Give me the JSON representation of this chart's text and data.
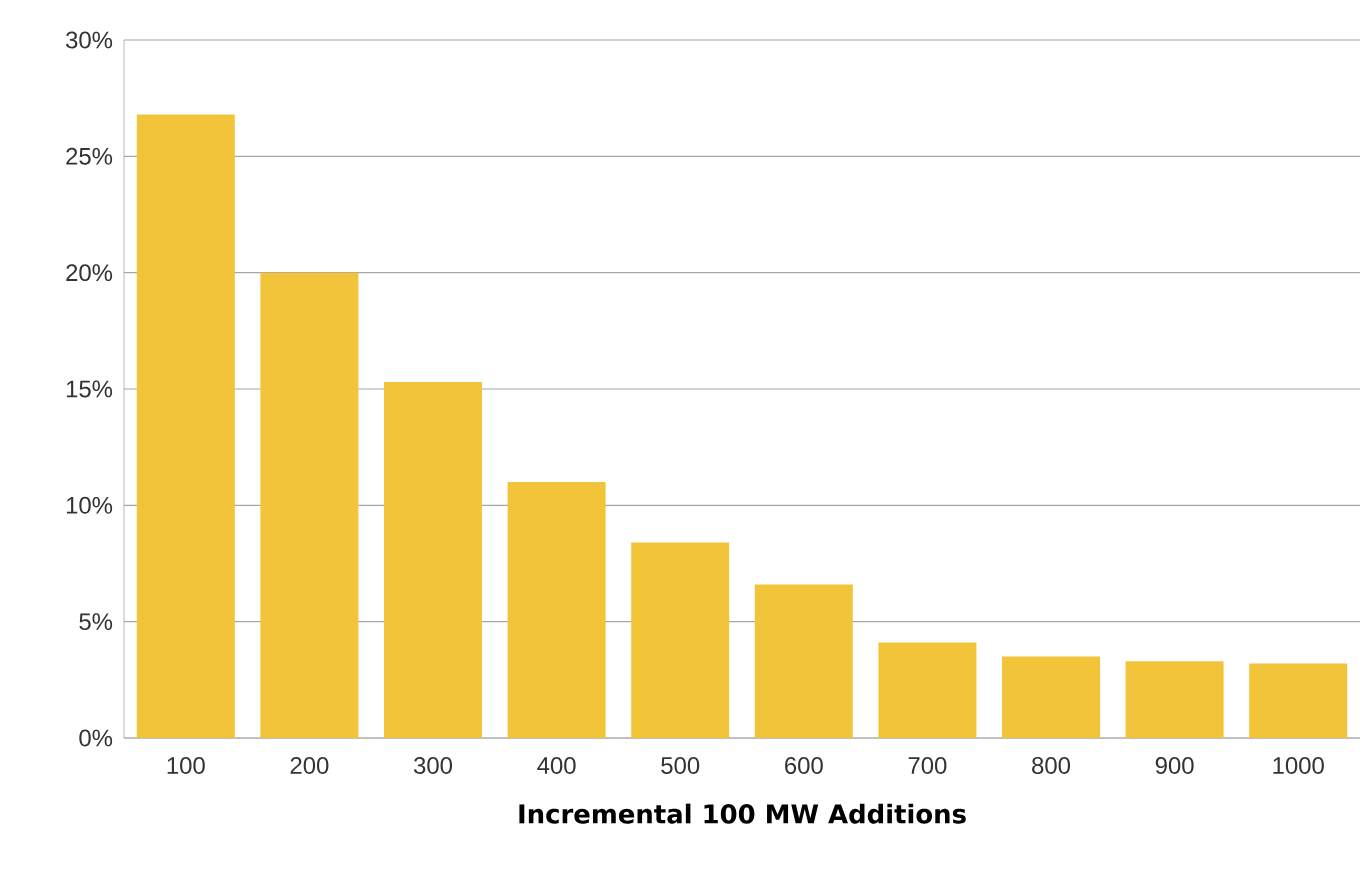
{
  "chart_data": {
    "type": "bar",
    "xlabel": "Incremental 100 MW Additions",
    "categories": [
      "100",
      "200",
      "300",
      "400",
      "500",
      "600",
      "700",
      "800",
      "900",
      "1000"
    ],
    "values": [
      26.8,
      20.0,
      15.3,
      11.0,
      8.4,
      6.6,
      4.1,
      3.5,
      3.3,
      3.2
    ],
    "color": "#f2c43a",
    "ylim": [
      0,
      30
    ],
    "yticks": [
      {
        "value": 0,
        "label": "0%"
      },
      {
        "value": 5,
        "label": "5%"
      },
      {
        "value": 10,
        "label": "10%"
      },
      {
        "value": 15,
        "label": "15%"
      },
      {
        "value": 20,
        "label": "20%"
      },
      {
        "value": 25,
        "label": "25%"
      },
      {
        "value": 30,
        "label": "30%"
      }
    ],
    "grid": "y"
  }
}
